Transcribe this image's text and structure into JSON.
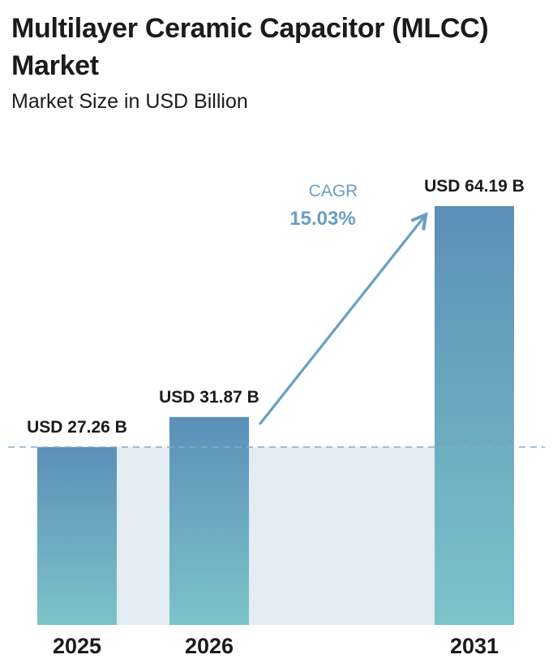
{
  "header": {
    "title": "Multilayer Ceramic Capacitor (MLCC) Market",
    "subtitle": "Market Size in USD Billion"
  },
  "chart_data": {
    "type": "bar",
    "categories": [
      "2025",
      "2026",
      "2031"
    ],
    "values": [
      27.26,
      31.87,
      64.19
    ],
    "data_labels": [
      "USD 27.26 B",
      "USD 31.87 B",
      "USD 64.19 B"
    ],
    "title": "Multilayer Ceramic Capacitor (MLCC) Market",
    "subtitle": "Market Size in USD Billion",
    "xlabel": "",
    "ylabel": "",
    "ylim": [
      0,
      64.19
    ],
    "grid": false,
    "legend": "none",
    "reference_line": {
      "value": 27.26,
      "style": "dashed"
    },
    "annotation": {
      "label": "CAGR",
      "value": "15.03%"
    },
    "colors": {
      "bar_top": "#5b8fb8",
      "bar_bottom": "#7cc3c9",
      "band": "#e3ebf3",
      "reference_line": "#86acc9",
      "arrow": "#6a9ec2",
      "text": "#1b1b1b"
    }
  }
}
